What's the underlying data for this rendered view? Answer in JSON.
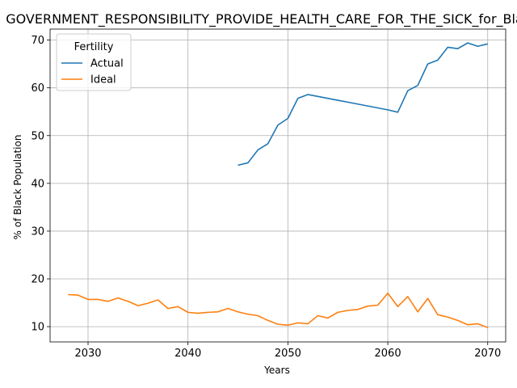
{
  "chart_data": {
    "type": "line",
    "title": "GOVERNMENT_RESPONSIBILITY_PROVIDE_HEALTH_CARE_FOR_THE_SICK_for_Black",
    "xlabel": "Years",
    "ylabel": "% of Black Population",
    "xlim": [
      2026.2,
      2071.8
    ],
    "ylim": [
      6.8,
      72.3
    ],
    "xticks": [
      2030,
      2040,
      2050,
      2060,
      2070
    ],
    "yticks": [
      10,
      20,
      30,
      40,
      50,
      60,
      70
    ],
    "grid": true,
    "legend": {
      "title": "Fertility",
      "placement": "top-left"
    },
    "series": [
      {
        "name": "Actual",
        "color": "#1f77b4",
        "x": [
          2045,
          2046,
          2047,
          2048,
          2049,
          2050,
          2051,
          2052,
          2053,
          2054,
          2055,
          2056,
          2057,
          2058,
          2059,
          2060,
          2061,
          2062,
          2063,
          2064,
          2065,
          2066,
          2067,
          2068,
          2069,
          2070
        ],
        "values": [
          43.8,
          44.3,
          47.0,
          48.3,
          52.2,
          53.6,
          57.8,
          58.6,
          58.2,
          57.8,
          57.4,
          57.0,
          56.6,
          56.2,
          55.8,
          55.4,
          54.9,
          59.4,
          60.5,
          65.0,
          65.8,
          68.5,
          68.2,
          69.4,
          68.7,
          69.2
        ]
      },
      {
        "name": "Ideal",
        "color": "#ff7f0e",
        "x": [
          2028,
          2029,
          2030,
          2031,
          2032,
          2033,
          2034,
          2035,
          2036,
          2037,
          2038,
          2039,
          2040,
          2041,
          2042,
          2043,
          2044,
          2045,
          2046,
          2047,
          2048,
          2049,
          2050,
          2051,
          2052,
          2053,
          2054,
          2055,
          2056,
          2057,
          2058,
          2059,
          2060,
          2061,
          2062,
          2063,
          2064,
          2065,
          2066,
          2067,
          2068,
          2069,
          2070
        ],
        "values": [
          16.7,
          16.6,
          15.7,
          15.7,
          15.3,
          16.0,
          15.3,
          14.4,
          14.9,
          15.6,
          13.8,
          14.2,
          13.0,
          12.8,
          13.0,
          13.1,
          13.8,
          13.1,
          12.6,
          12.3,
          11.3,
          10.5,
          10.3,
          10.8,
          10.6,
          12.3,
          11.8,
          13.0,
          13.4,
          13.6,
          14.3,
          14.5,
          17.0,
          14.2,
          16.3,
          13.1,
          15.9,
          12.5,
          12.0,
          11.3,
          10.4,
          10.6,
          9.8
        ]
      }
    ]
  }
}
